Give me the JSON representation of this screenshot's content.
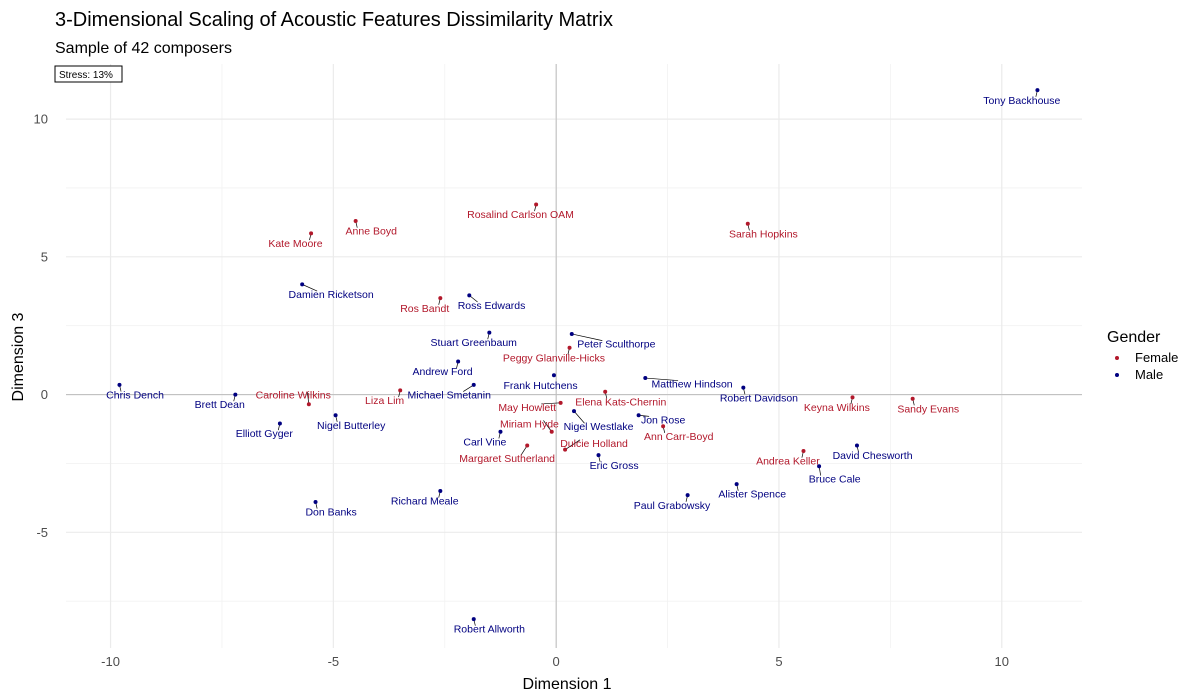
{
  "chart_data": {
    "type": "scatter",
    "title": "3-Dimensional Scaling of Acoustic Features Dissimilarity Matrix",
    "subtitle": "Sample of 42 composers",
    "xlabel": "Dimension 1",
    "ylabel": "Dimension 3",
    "xlim": [
      -11,
      11.8
    ],
    "ylim": [
      -9.2,
      12
    ],
    "xticks": [
      -10,
      -5,
      0,
      5,
      10
    ],
    "yticks": [
      -5,
      0,
      5,
      10
    ],
    "xtick_labels": [
      "-10",
      "-5",
      "0",
      "5",
      "10"
    ],
    "ytick_labels": [
      "-5",
      "0",
      "5",
      "10"
    ],
    "grid": true,
    "annotation": "Stress: 13%",
    "legend": {
      "title": "Gender",
      "placement": "right",
      "entries": [
        {
          "label": "Female",
          "color": "#B2182B"
        },
        {
          "label": "Male",
          "color": "#000080"
        }
      ]
    },
    "colors": {
      "Female": "#B2182B",
      "Male": "#000080"
    },
    "points": [
      {
        "name": "Tony Backhouse",
        "gender": "Male",
        "x": 10.8,
        "y": 11.05,
        "lx": 10.45,
        "ly": 10.7
      },
      {
        "name": "Sarah Hopkins",
        "gender": "Female",
        "x": 4.3,
        "y": 6.2,
        "lx": 4.65,
        "ly": 5.85
      },
      {
        "name": "Rosalind Carlson OAM",
        "gender": "Female",
        "x": -0.45,
        "y": 6.9,
        "lx": -0.8,
        "ly": 6.55
      },
      {
        "name": "Anne Boyd",
        "gender": "Female",
        "x": -4.5,
        "y": 6.3,
        "lx": -4.15,
        "ly": 5.95
      },
      {
        "name": "Kate Moore",
        "gender": "Female",
        "x": -5.5,
        "y": 5.85,
        "lx": -5.85,
        "ly": 5.5
      },
      {
        "name": "Damien Ricketson",
        "gender": "Male",
        "x": -5.7,
        "y": 4.0,
        "lx": -5.05,
        "ly": 3.65
      },
      {
        "name": "Ros Bandt",
        "gender": "Female",
        "x": -2.6,
        "y": 3.5,
        "lx": -2.95,
        "ly": 3.15
      },
      {
        "name": "Ross Edwards",
        "gender": "Male",
        "x": -1.95,
        "y": 3.6,
        "lx": -1.45,
        "ly": 3.25
      },
      {
        "name": "Stuart Greenbaum",
        "gender": "Male",
        "x": -1.5,
        "y": 2.25,
        "lx": -1.85,
        "ly": 1.9
      },
      {
        "name": "Peter Sculthorpe",
        "gender": "Male",
        "x": 0.35,
        "y": 2.2,
        "lx": 1.35,
        "ly": 1.85
      },
      {
        "name": "Peggy Glanville-Hicks",
        "gender": "Female",
        "x": 0.3,
        "y": 1.7,
        "lx": -0.05,
        "ly": 1.35
      },
      {
        "name": "Andrew Ford",
        "gender": "Male",
        "x": -2.2,
        "y": 1.2,
        "lx": -2.55,
        "ly": 0.85
      },
      {
        "name": "Frank Hutchens",
        "gender": "Male",
        "x": -0.05,
        "y": 0.7,
        "lx": -0.35,
        "ly": 0.35
      },
      {
        "name": "Matthew Hindson",
        "gender": "Male",
        "x": 2.0,
        "y": 0.6,
        "lx": 3.05,
        "ly": 0.4
      },
      {
        "name": "Robert Davidson",
        "gender": "Male",
        "x": 4.2,
        "y": 0.25,
        "lx": 4.55,
        "ly": -0.1
      },
      {
        "name": "Chris Dench",
        "gender": "Male",
        "x": -9.8,
        "y": 0.35,
        "lx": -9.45,
        "ly": 0.0
      },
      {
        "name": "Brett Dean",
        "gender": "Male",
        "x": -7.2,
        "y": 0.0,
        "lx": -7.55,
        "ly": -0.35
      },
      {
        "name": "Caroline Wilkins",
        "gender": "Female",
        "x": -5.55,
        "y": -0.35,
        "lx": -5.9,
        "ly": 0.0
      },
      {
        "name": "Liza Lim",
        "gender": "Female",
        "x": -3.5,
        "y": 0.15,
        "lx": -3.85,
        "ly": -0.2
      },
      {
        "name": "Michael Smetanin",
        "gender": "Male",
        "x": -1.85,
        "y": 0.35,
        "lx": -2.4,
        "ly": 0.0
      },
      {
        "name": "Keyna Wilkins",
        "gender": "Female",
        "x": 6.65,
        "y": -0.1,
        "lx": 6.3,
        "ly": -0.45
      },
      {
        "name": "Sandy Evans",
        "gender": "Female",
        "x": 8.0,
        "y": -0.15,
        "lx": 8.35,
        "ly": -0.5
      },
      {
        "name": "May Howlett",
        "gender": "Female",
        "x": 0.1,
        "y": -0.3,
        "lx": -0.65,
        "ly": -0.45
      },
      {
        "name": "Elena Kats-Chernin",
        "gender": "Female",
        "x": 1.1,
        "y": 0.1,
        "lx": 1.45,
        "ly": -0.25
      },
      {
        "name": "Nigel Westlake",
        "gender": "Male",
        "x": 0.4,
        "y": -0.6,
        "lx": 0.95,
        "ly": -1.15
      },
      {
        "name": "Jon Rose",
        "gender": "Male",
        "x": 1.85,
        "y": -0.75,
        "lx": 2.4,
        "ly": -0.9
      },
      {
        "name": "Nigel Butterley",
        "gender": "Male",
        "x": -4.95,
        "y": -0.75,
        "lx": -4.6,
        "ly": -1.1
      },
      {
        "name": "Elliott Gyger",
        "gender": "Male",
        "x": -6.2,
        "y": -1.05,
        "lx": -6.55,
        "ly": -1.4
      },
      {
        "name": "Miriam Hyde",
        "gender": "Female",
        "x": -0.1,
        "y": -1.35,
        "lx": -0.6,
        "ly": -1.05
      },
      {
        "name": "Carl Vine",
        "gender": "Male",
        "x": -1.25,
        "y": -1.35,
        "lx": -1.6,
        "ly": -1.7
      },
      {
        "name": "Ann Carr-Boyd",
        "gender": "Female",
        "x": 2.4,
        "y": -1.15,
        "lx": 2.75,
        "ly": -1.5
      },
      {
        "name": "Dulcie Holland",
        "gender": "Female",
        "x": 0.2,
        "y": -2.0,
        "lx": 0.85,
        "ly": -1.75
      },
      {
        "name": "Margaret Sutherland",
        "gender": "Female",
        "x": -0.65,
        "y": -1.85,
        "lx": -1.1,
        "ly": -2.3
      },
      {
        "name": "Eric Gross",
        "gender": "Male",
        "x": 0.95,
        "y": -2.2,
        "lx": 1.3,
        "ly": -2.55
      },
      {
        "name": "Andrea Keller",
        "gender": "Female",
        "x": 5.55,
        "y": -2.05,
        "lx": 5.2,
        "ly": -2.4
      },
      {
        "name": "David Chesworth",
        "gender": "Male",
        "x": 6.75,
        "y": -1.85,
        "lx": 7.1,
        "ly": -2.2
      },
      {
        "name": "Bruce Cale",
        "gender": "Male",
        "x": 5.9,
        "y": -2.6,
        "lx": 6.25,
        "ly": -3.05
      },
      {
        "name": "Alister Spence",
        "gender": "Male",
        "x": 4.05,
        "y": -3.25,
        "lx": 4.4,
        "ly": -3.6
      },
      {
        "name": "Paul Grabowsky",
        "gender": "Male",
        "x": 2.95,
        "y": -3.65,
        "lx": 2.6,
        "ly": -4.0
      },
      {
        "name": "Richard Meale",
        "gender": "Male",
        "x": -2.6,
        "y": -3.5,
        "lx": -2.95,
        "ly": -3.85
      },
      {
        "name": "Don Banks",
        "gender": "Male",
        "x": -5.4,
        "y": -3.9,
        "lx": -5.05,
        "ly": -4.25
      },
      {
        "name": "Robert Allworth",
        "gender": "Male",
        "x": -1.85,
        "y": -8.15,
        "lx": -1.5,
        "ly": -8.5
      }
    ]
  }
}
